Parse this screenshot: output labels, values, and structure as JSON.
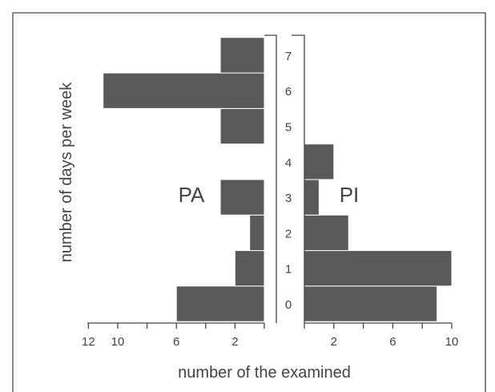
{
  "chart_data": {
    "type": "bar",
    "orientation": "horizontal",
    "categories": [
      "0",
      "1",
      "2",
      "3",
      "4",
      "5",
      "6",
      "7"
    ],
    "series": [
      {
        "name": "PA",
        "side": "left",
        "values": [
          6,
          2,
          1,
          3,
          0,
          3,
          11,
          3
        ]
      },
      {
        "name": "PI",
        "side": "right",
        "values": [
          9,
          10,
          3,
          1,
          2,
          0,
          0,
          0
        ]
      }
    ],
    "ylabel": "number of days per week",
    "xlabel": "number of the examined",
    "left_ticks": [
      "12",
      "10",
      "6",
      "2"
    ],
    "right_ticks": [
      "2",
      "6",
      "10"
    ],
    "left_xlim": [
      0,
      12
    ],
    "right_xlim": [
      0,
      10
    ],
    "grid": false,
    "colors": {
      "bar": "#58595b",
      "text": "#444444"
    }
  }
}
